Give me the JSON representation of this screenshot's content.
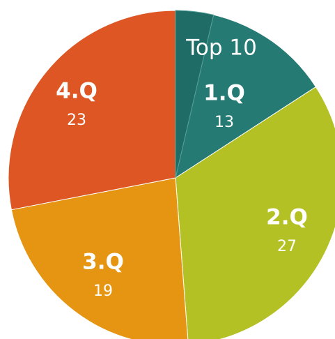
{
  "chart_data": {
    "type": "pie",
    "categories": [
      "1.Q",
      "2.Q",
      "3.Q",
      "4.Q"
    ],
    "values": [
      13,
      27,
      19,
      23
    ],
    "colors": [
      "#257a73",
      "#b3c124",
      "#e59512",
      "#dd5623"
    ],
    "highlight": {
      "label": "Top 10",
      "value": 3,
      "color": "#1f6c66"
    }
  }
}
